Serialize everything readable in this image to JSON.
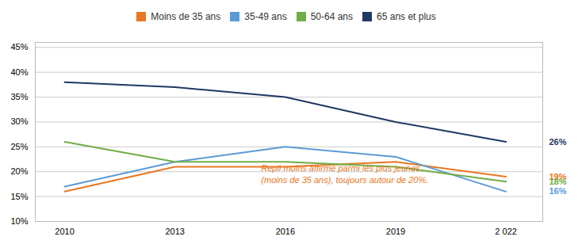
{
  "chart_data": {
    "type": "line",
    "x": [
      2010,
      2013,
      2016,
      2019,
      2022
    ],
    "xlim": [
      2009.2,
      2023.0
    ],
    "xticks": [
      2010,
      2013,
      2016,
      2019,
      {
        "value": 2022,
        "label": "2 022"
      }
    ],
    "ylim": [
      10,
      46
    ],
    "yticks": [
      {
        "value": 10,
        "label": "10%"
      },
      {
        "value": 15,
        "label": "15%"
      },
      {
        "value": 20,
        "label": "20%"
      },
      {
        "value": 25,
        "label": "25%"
      },
      {
        "value": 30,
        "label": "30%"
      },
      {
        "value": 35,
        "label": "35%"
      },
      {
        "value": 40,
        "label": "40%"
      },
      {
        "value": 45,
        "label": "45%"
      }
    ],
    "grid": true,
    "legend": "top",
    "series": [
      {
        "name": "Moins de 35 ans",
        "color": "#E87722",
        "values": [
          16,
          21,
          21,
          22,
          19
        ],
        "value_labels": [
          null,
          null,
          null,
          null,
          "19%"
        ]
      },
      {
        "name": "35-49 ans",
        "color": "#5B9BD5",
        "values": [
          17,
          22,
          25,
          23,
          16
        ],
        "value_labels": [
          null,
          null,
          null,
          null,
          "16%"
        ]
      },
      {
        "name": "50-64 ans",
        "color": "#70AD47",
        "values": [
          26,
          22,
          22,
          21,
          18
        ],
        "value_labels": [
          null,
          null,
          null,
          null,
          "18%"
        ]
      },
      {
        "name": "65 ans et plus",
        "color": "#1F3864",
        "values": [
          38,
          37,
          35,
          30,
          26
        ],
        "value_labels": [
          null,
          null,
          null,
          null,
          "26%"
        ]
      }
    ],
    "annotations": [
      {
        "text": "Repli moins affirmé parmi les plus jeunes\n(moins de 35 ans), toujours autour de 20%.",
        "color": "#E87722"
      }
    ]
  }
}
